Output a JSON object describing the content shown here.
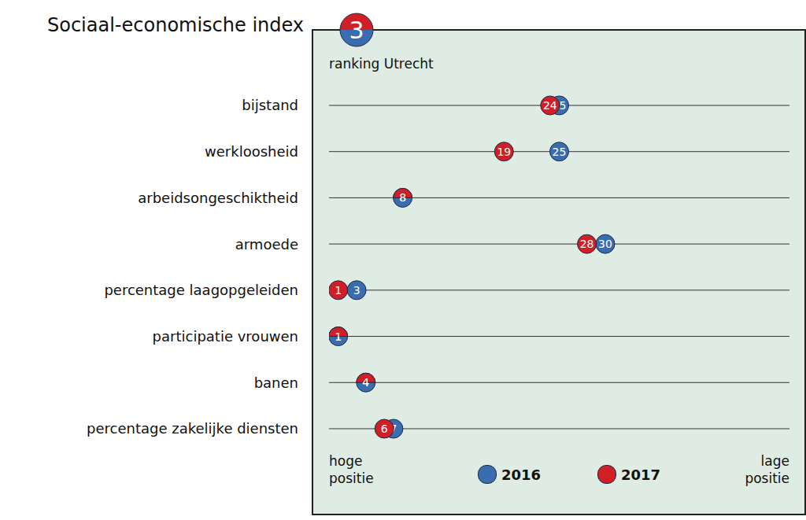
{
  "chart_data": {
    "type": "scatter",
    "title": "Sociaal-economische index",
    "subtitle": "ranking Utrecht",
    "categories": [
      "bijstand",
      "werkloosheid",
      "arbeidsongeschiktheid",
      "armoede",
      "percentage laagopgeleiden",
      "participatie vrouwen",
      "banen",
      "percentage zakelijke diensten"
    ],
    "series": [
      {
        "name": "2016",
        "color": "#3a6cb0",
        "values": [
          25,
          25,
          8,
          30,
          3,
          1,
          4,
          7
        ],
        "index_rank": 3
      },
      {
        "name": "2017",
        "color": "#d01f26",
        "values": [
          24,
          19,
          8,
          28,
          1,
          1,
          4,
          6
        ],
        "index_rank": 3
      }
    ],
    "xlim": [
      0,
      50
    ],
    "axis_label_left": "hoge positie",
    "axis_label_right": "lage positie",
    "data_labels": true,
    "tick_labels": "y",
    "grid": true,
    "legend": "bottom"
  }
}
